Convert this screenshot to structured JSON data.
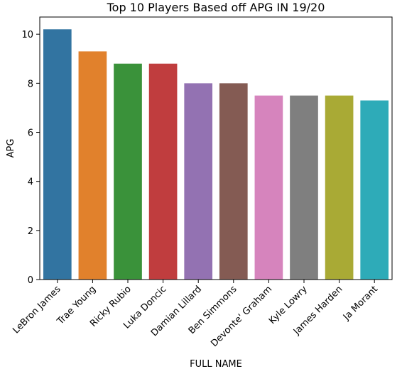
{
  "chart_data": {
    "type": "bar",
    "title": "Top 10 Players Based off APG IN 19/20",
    "xlabel": "FULL NAME",
    "ylabel": "APG",
    "ylim": [
      0,
      10.7
    ],
    "yticks": [
      0,
      2,
      4,
      6,
      8,
      10
    ],
    "grid": false,
    "categories": [
      "LeBron James",
      "Trae Young",
      "Ricky Rubio",
      "Luka Doncic",
      "Damian Lillard",
      "Ben Simmons",
      "Devonte' Graham",
      "Kyle Lowry",
      "James Harden",
      "Ja Morant"
    ],
    "values": [
      10.2,
      9.3,
      8.8,
      8.8,
      8.0,
      8.0,
      7.5,
      7.5,
      7.5,
      7.3
    ],
    "colors": [
      "#3274a1",
      "#e1812c",
      "#3a923a",
      "#c03d3e",
      "#9372b2",
      "#845b53",
      "#d684bd",
      "#7f7f7f",
      "#a9aa35",
      "#2eabb8"
    ]
  }
}
